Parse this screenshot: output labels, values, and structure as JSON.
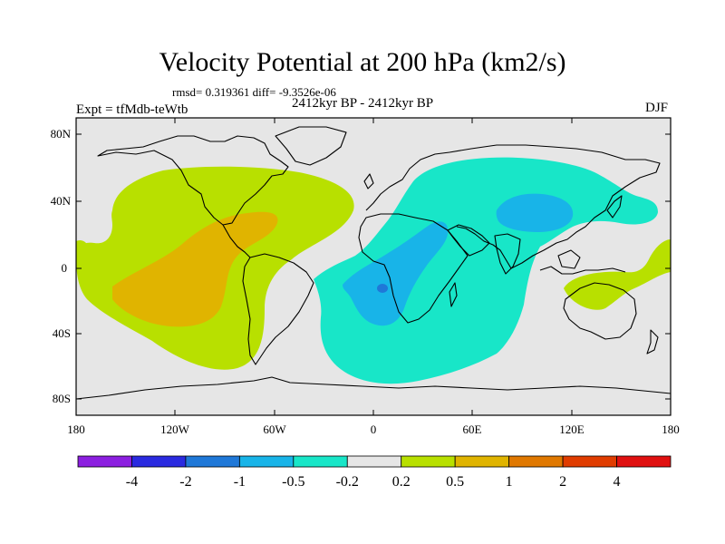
{
  "title": "Velocity Potential at 200 hPa (km2/s)",
  "stats_line": "rmsd= 0.319361 diff= -9.3526e-06",
  "experiment": "Expt = tfMdb-teWtb",
  "period": "2412kyr BP - 2412kyr BP",
  "season": "DJF",
  "axes": {
    "y_labels": [
      "80N",
      "40N",
      "0",
      "40S",
      "80S"
    ],
    "x_labels": [
      "180",
      "120W",
      "60W",
      "0",
      "60E",
      "120E",
      "180"
    ]
  },
  "colorbar": {
    "labels": [
      "-4",
      "-2",
      "-1",
      "-0.5",
      "-0.2",
      "0.2",
      "0.5",
      "1",
      "2",
      "4"
    ],
    "colors": [
      "#8c1fe0",
      "#2a2ae0",
      "#1f78d8",
      "#18b4e8",
      "#18e6c8",
      "#e6e6e6",
      "#b8e000",
      "#e0b400",
      "#e07800",
      "#e03c00",
      "#e01010"
    ]
  },
  "fill_colors": {
    "background": "#e6e6e6",
    "positive_weak": "#b8e000",
    "positive_mid": "#e0b400",
    "negative_weak": "#18e6c8",
    "negative_mid": "#18b4e8",
    "negative_strong": "#1f78d8"
  }
}
